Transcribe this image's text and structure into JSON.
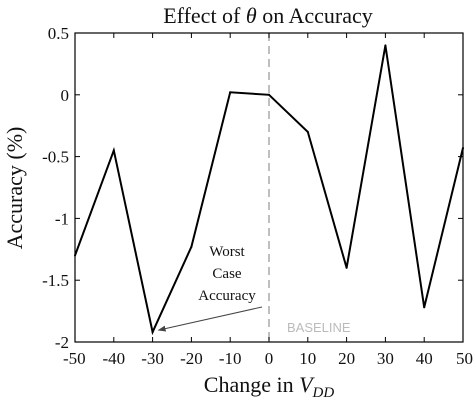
{
  "chart_data": {
    "type": "line",
    "title_prefix": "Effect of ",
    "title_symbol": "θ",
    "title_suffix": " on Accuracy",
    "xlabel_prefix": "Change in ",
    "xlabel_var": "V",
    "xlabel_sub": "DD",
    "ylabel": "Accuracy (%)",
    "xlim": [
      -50,
      50
    ],
    "ylim": [
      -2,
      0.5
    ],
    "xticks": [
      -50,
      -40,
      -30,
      -20,
      -10,
      0,
      10,
      20,
      30,
      40,
      50
    ],
    "yticks": [
      0.5,
      0,
      -0.5,
      -1,
      -1.5,
      -2
    ],
    "ytick_labels": [
      "0.5",
      "0",
      "-0.5",
      "-1",
      "-1.5",
      "-2"
    ],
    "x": [
      -50,
      -40,
      -30,
      -20,
      -10,
      0,
      10,
      20,
      30,
      40,
      50
    ],
    "series": [
      {
        "values": [
          -1.3,
          -0.45,
          -1.92,
          -1.23,
          0.02,
          0.0,
          -0.3,
          -1.4,
          0.4,
          -1.72,
          -0.43
        ]
      }
    ],
    "baseline_x": 0,
    "baseline_label": "BASELINE",
    "annotation": {
      "lines": [
        "Worst",
        "Case",
        "Accuracy"
      ],
      "target": [
        -30,
        -1.92
      ]
    },
    "grid": false,
    "legend": "none",
    "colors": {
      "line": "#000000",
      "baseline": "#aaaaaa",
      "baseline_label": "#bbbbbb"
    }
  }
}
